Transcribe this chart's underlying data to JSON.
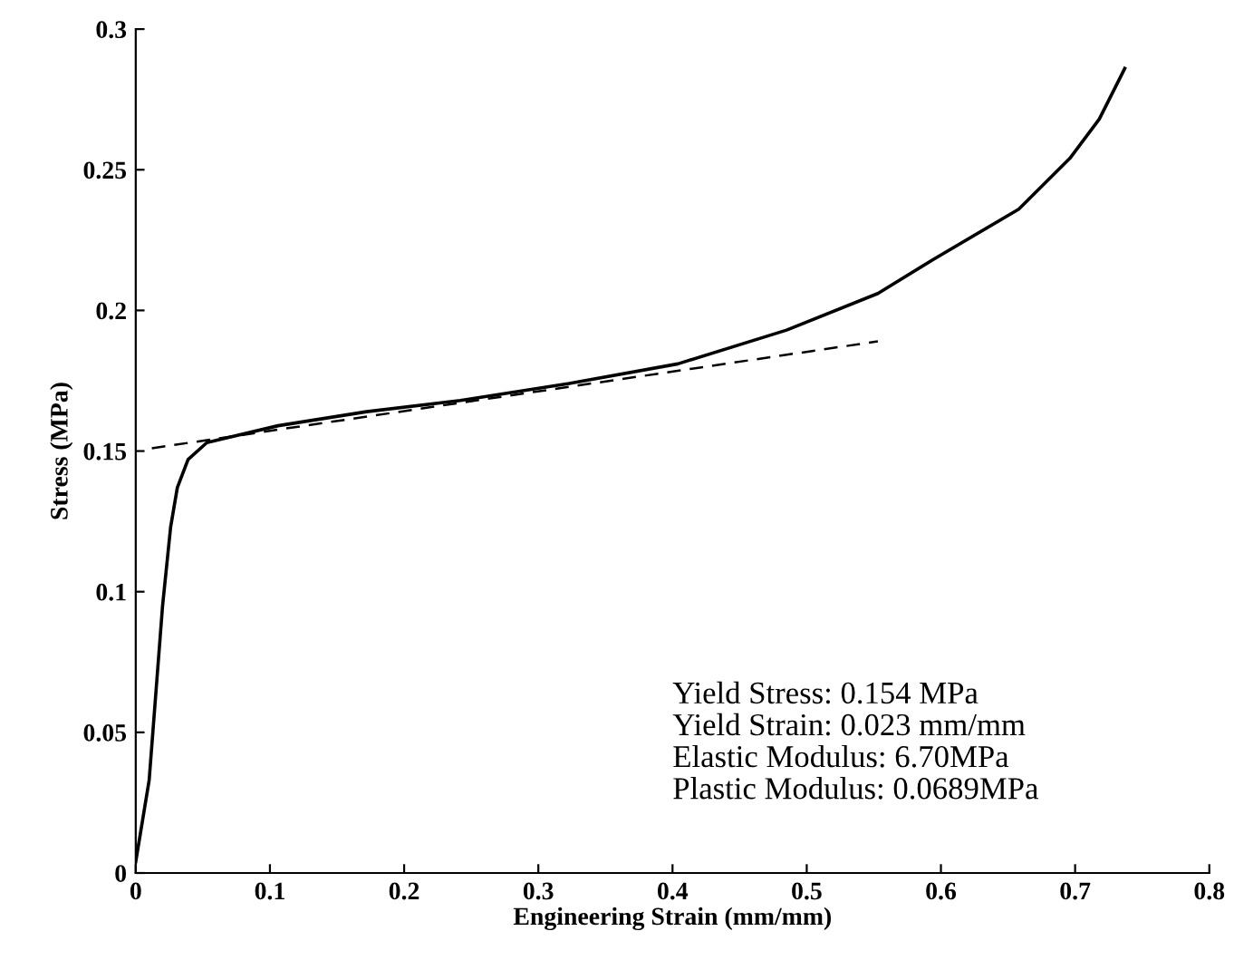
{
  "chart_data": {
    "type": "line",
    "xlabel": "Engineering Strain (mm/mm)",
    "ylabel": "Stress (MPa)",
    "xlim": [
      0,
      0.8
    ],
    "ylim": [
      0,
      0.3
    ],
    "xticks": [
      0,
      0.1,
      0.2,
      0.3,
      0.4,
      0.5,
      0.6,
      0.7,
      0.8
    ],
    "yticks": [
      0,
      0.05,
      0.1,
      0.15,
      0.2,
      0.25,
      0.3
    ],
    "grid": false,
    "legend": false,
    "series": [
      {
        "color": "#000000",
        "line_style": "solid",
        "x": [
          0,
          0.01,
          0.02,
          0.026,
          0.031,
          0.039,
          0.053,
          0.106,
          0.172,
          0.242,
          0.323,
          0.404,
          0.485,
          0.553,
          0.594,
          0.658,
          0.696,
          0.718,
          0.737
        ],
        "values": [
          0.004,
          0.033,
          0.095,
          0.123,
          0.137,
          0.147,
          0.153,
          0.159,
          0.164,
          0.168,
          0.174,
          0.181,
          0.193,
          0.206,
          0.218,
          0.236,
          0.254,
          0.268,
          0.286
        ]
      },
      {
        "color": "#000000",
        "line_style": "dashed",
        "x": [
          0.012,
          0.553
        ],
        "values": [
          0.151,
          0.189
        ]
      }
    ],
    "annotations": [
      "Yield Stress: 0.154 MPa\nYield Strain: 0.023 mm/mm\nElastic Modulus: 6.70MPa\nPlastic Modulus: 0.0689MPa"
    ]
  }
}
